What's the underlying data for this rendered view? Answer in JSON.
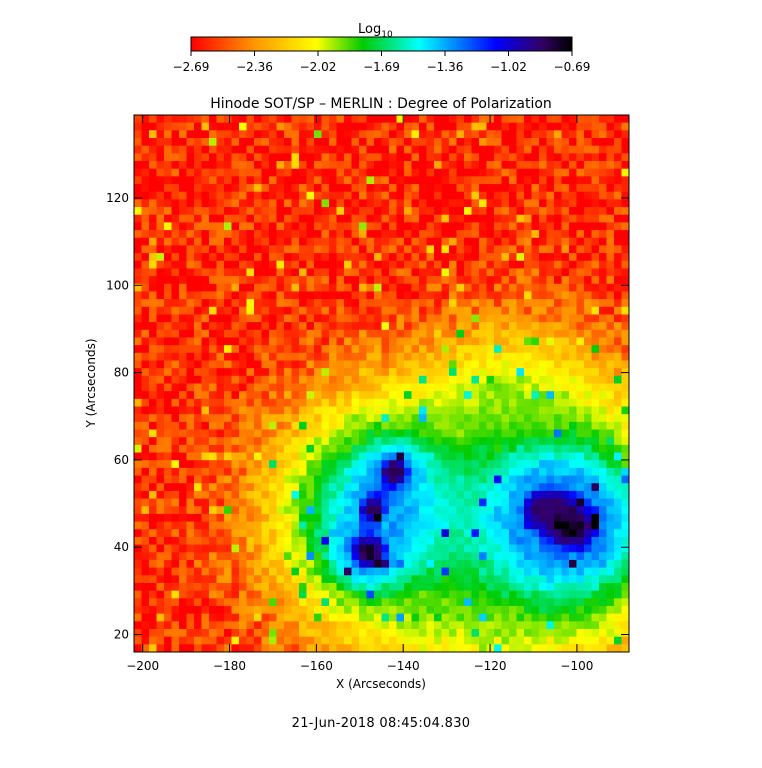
{
  "chart_data": {
    "type": "heatmap",
    "title": "Hinode SOT/SP – MERLIN : Degree of Polarization",
    "xlabel": "X (Arcseconds)",
    "ylabel": "Y (Arcseconds)",
    "xlim": [
      -202,
      -88
    ],
    "ylim": [
      16,
      139
    ],
    "xticks": [
      -200,
      -180,
      -160,
      -140,
      -120,
      -100
    ],
    "yticks": [
      20,
      40,
      60,
      80,
      100,
      120
    ],
    "colorbar": {
      "label": "Log",
      "label_subscript": "10",
      "range": [
        -2.69,
        -0.69
      ],
      "ticks": [
        "-2.69",
        "-2.36",
        "-2.02",
        "-1.69",
        "-1.36",
        "-1.02",
        "-0.69"
      ],
      "colormap": [
        "#ff0000",
        "#ff9900",
        "#ffff00",
        "#00cc00",
        "#00ffff",
        "#0000ff",
        "#000000"
      ]
    },
    "background_level": -2.6,
    "features": [
      {
        "kind": "umbra",
        "x": -142,
        "y": 57,
        "r": 4.5,
        "level": -0.75
      },
      {
        "kind": "umbra",
        "x": -147,
        "y": 49,
        "r": 3.5,
        "level": -0.8
      },
      {
        "kind": "umbra",
        "x": -148,
        "y": 39,
        "r": 5.5,
        "level": -0.78
      },
      {
        "kind": "umbra",
        "x": -101,
        "y": 45,
        "r": 8,
        "level": -0.72
      },
      {
        "kind": "umbra",
        "x": -108,
        "y": 49,
        "r": 5,
        "level": -0.8
      },
      {
        "kind": "penumbra",
        "x": -145,
        "y": 48,
        "r": 17,
        "level": -1.35
      },
      {
        "kind": "penumbra",
        "x": -105,
        "y": 46,
        "r": 20,
        "level": -1.3
      },
      {
        "kind": "plage",
        "x": -127,
        "y": 40,
        "r": 20,
        "level": -1.85
      },
      {
        "kind": "plage",
        "x": -116,
        "y": 68,
        "r": 14,
        "level": -1.9
      }
    ]
  },
  "timestamp": "21-Jun-2018 08:45:04.830"
}
